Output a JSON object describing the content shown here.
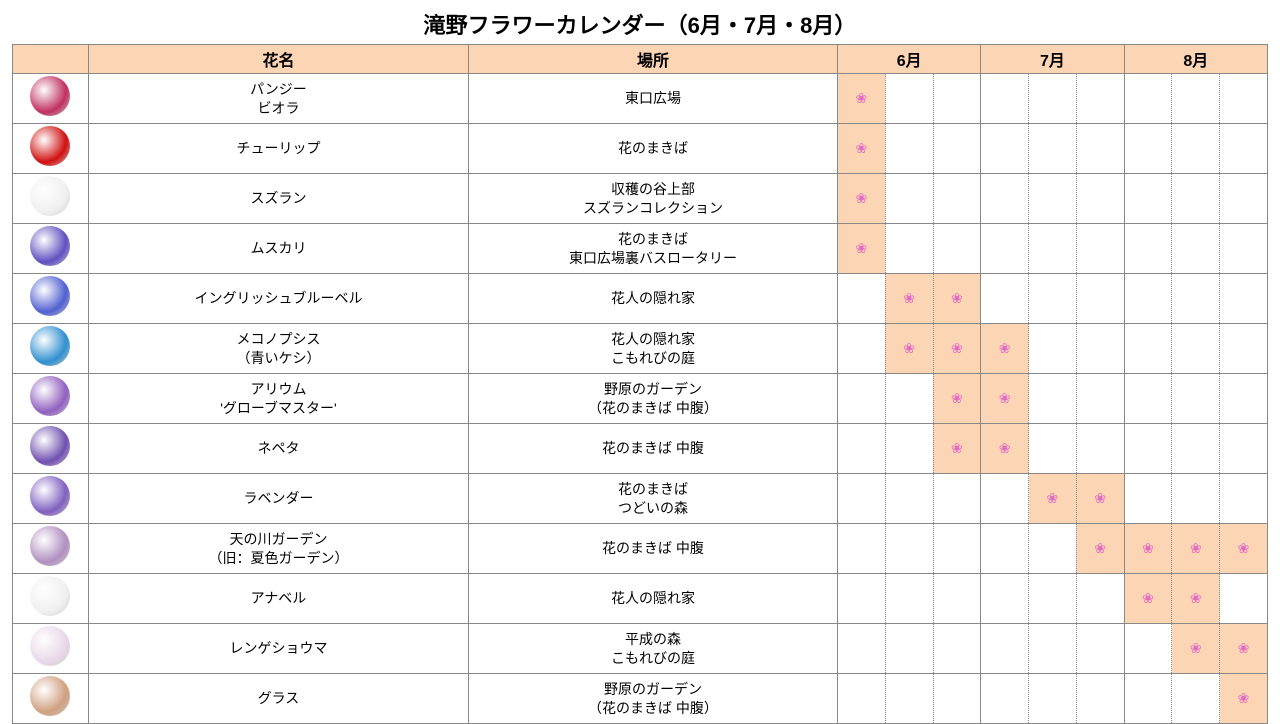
{
  "title": "滝野フラワーカレンダー（6月・7月・8月）",
  "header_bg": "#fcd5b4",
  "bloom_bg": "#fcd5b4",
  "flower_char": "❀",
  "flower_color": "#e36bc6",
  "columns": {
    "name": "花名",
    "location": "場所",
    "months": [
      "6月",
      "7月",
      "8月"
    ]
  },
  "periods_per_month": 3,
  "rows": [
    {
      "img_color": "#c03060",
      "name": "パンジー\nビオラ",
      "location": "東口広場",
      "bloom": [
        0
      ]
    },
    {
      "img_color": "#d01010",
      "name": "チューリップ",
      "location": "花のまきば",
      "bloom": [
        0
      ]
    },
    {
      "img_color": "#f0f0f0",
      "name": "スズラン",
      "location": "収穫の谷上部\nスズランコレクション",
      "bloom": [
        0
      ]
    },
    {
      "img_color": "#6050c0",
      "name": "ムスカリ",
      "location": "花のまきば\n東口広場裏バスロータリー",
      "bloom": [
        0
      ]
    },
    {
      "img_color": "#5060d0",
      "name": "イングリッシュブルーベル",
      "location": "花人の隠れ家",
      "bloom": [
        1,
        2
      ]
    },
    {
      "img_color": "#3090d0",
      "name": "メコノプシス\n（青いケシ）",
      "location": "花人の隠れ家\nこもれびの庭",
      "bloom": [
        1,
        2,
        3
      ]
    },
    {
      "img_color": "#9060c0",
      "name": "アリウム\n'グローブマスター'",
      "location": "野原のガーデン\n（花のまきば 中腹）",
      "bloom": [
        2,
        3
      ]
    },
    {
      "img_color": "#7050b0",
      "name": "ネペタ",
      "location": "花のまきば 中腹",
      "bloom": [
        2,
        3
      ]
    },
    {
      "img_color": "#8060c0",
      "name": "ラベンダー",
      "location": "花のまきば\nつどいの森",
      "bloom": [
        4,
        5
      ]
    },
    {
      "img_color": "#b090c0",
      "name": "天の川ガーデン\n（旧：夏色ガーデン）",
      "location": "花のまきば 中腹",
      "bloom": [
        5,
        6,
        7,
        8
      ]
    },
    {
      "img_color": "#f0f0f0",
      "name": "アナベル",
      "location": "花人の隠れ家",
      "bloom": [
        6,
        7
      ]
    },
    {
      "img_color": "#e8d8e8",
      "name": "レンゲショウマ",
      "location": "平成の森\nこもれびの庭",
      "bloom": [
        7,
        8
      ]
    },
    {
      "img_color": "#d0a080",
      "name": "グラス",
      "location": "野原のガーデン\n（花のまきば 中腹）",
      "bloom": [
        8
      ]
    }
  ]
}
